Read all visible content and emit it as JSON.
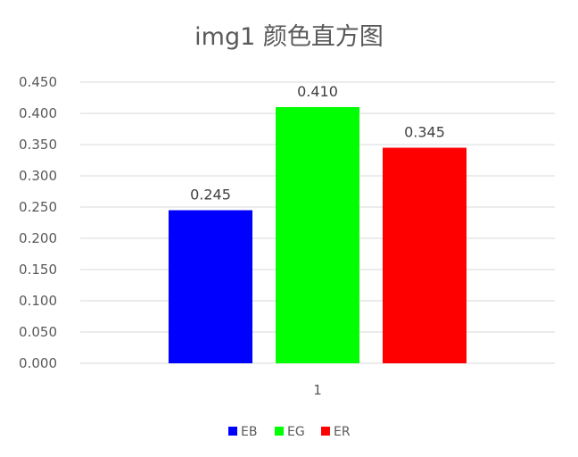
{
  "chart_data": {
    "type": "bar",
    "title": "img1 颜色直方图",
    "categories": [
      "1"
    ],
    "series": [
      {
        "name": "EB",
        "values": [
          0.245
        ],
        "color": "#0000ff"
      },
      {
        "name": "EG",
        "values": [
          0.41
        ],
        "color": "#00ff00"
      },
      {
        "name": "ER",
        "values": [
          0.345
        ],
        "color": "#ff0000"
      }
    ],
    "data_labels": [
      "0.245",
      "0.410",
      "0.345"
    ],
    "ylim": [
      0,
      0.45
    ],
    "yticks": [
      "0.000",
      "0.050",
      "0.100",
      "0.150",
      "0.200",
      "0.250",
      "0.300",
      "0.350",
      "0.400",
      "0.450"
    ],
    "grid": true,
    "legend_position": "bottom",
    "gridline_color": "#d9d9d9"
  }
}
